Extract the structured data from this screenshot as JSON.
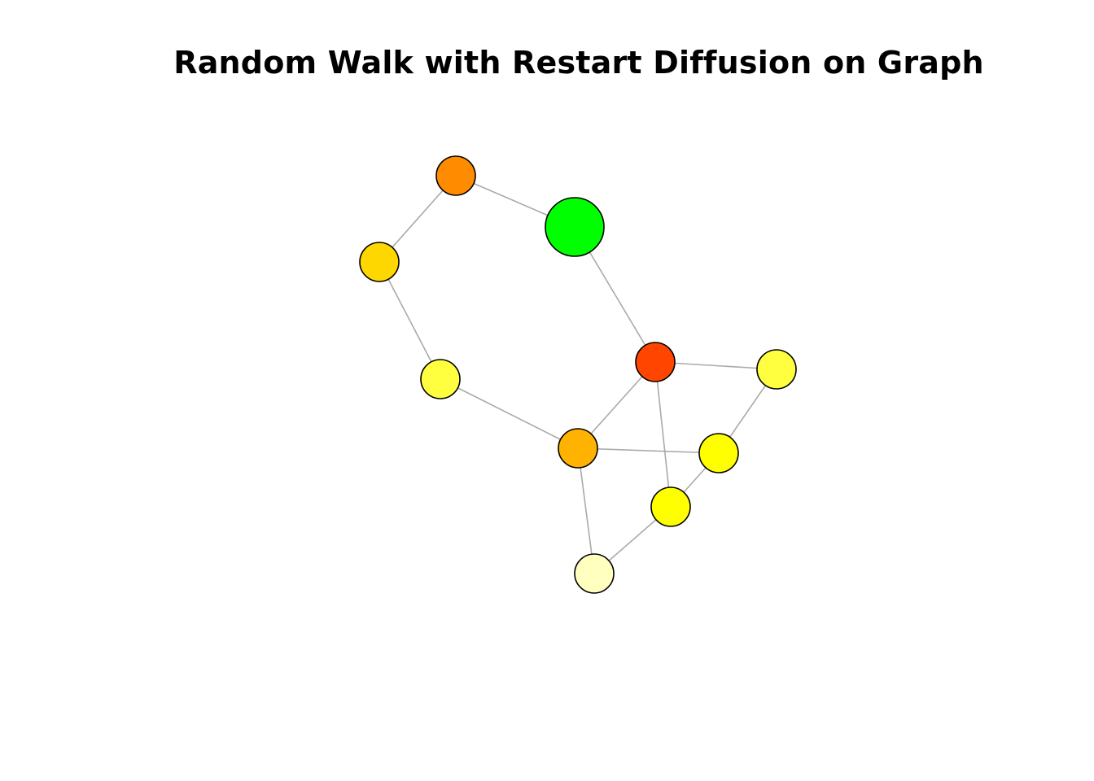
{
  "title": "Random Walk with Restart Diffusion on Graph",
  "graph": {
    "nodes": [
      {
        "id": "n1",
        "color": "#FF8C00",
        "seed": false
      },
      {
        "id": "n2",
        "color": "#00FF00",
        "seed": true
      },
      {
        "id": "n3",
        "color": "#FFD700",
        "seed": false
      },
      {
        "id": "n4",
        "color": "#FFFF40",
        "seed": false
      },
      {
        "id": "n5",
        "color": "#FF4500",
        "seed": false
      },
      {
        "id": "n6",
        "color": "#FFFF40",
        "seed": false
      },
      {
        "id": "n7",
        "color": "#FFB300",
        "seed": false
      },
      {
        "id": "n8",
        "color": "#FFFF00",
        "seed": false
      },
      {
        "id": "n9",
        "color": "#FFFF00",
        "seed": false
      },
      {
        "id": "n10",
        "color": "#FFFFC0",
        "seed": false
      }
    ],
    "edges": [
      [
        "n1",
        "n2"
      ],
      [
        "n1",
        "n3"
      ],
      [
        "n3",
        "n4"
      ],
      [
        "n2",
        "n5"
      ],
      [
        "n4",
        "n7"
      ],
      [
        "n5",
        "n6"
      ],
      [
        "n5",
        "n7"
      ],
      [
        "n5",
        "n9"
      ],
      [
        "n6",
        "n8"
      ],
      [
        "n7",
        "n8"
      ],
      [
        "n7",
        "n10"
      ],
      [
        "n8",
        "n9"
      ],
      [
        "n9",
        "n10"
      ]
    ],
    "edge_color": "#AAAAAA",
    "node_border_color": "#000000"
  }
}
